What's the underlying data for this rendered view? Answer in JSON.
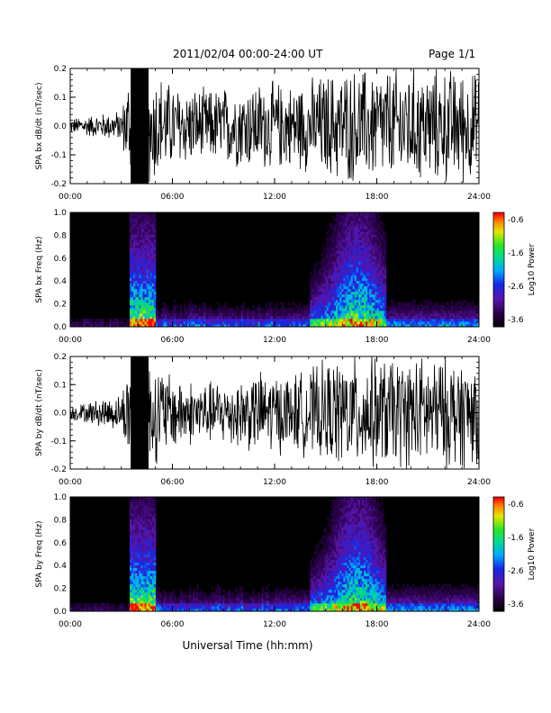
{
  "header": {
    "title": "2011/02/04  00:00-24:00 UT",
    "page": "Page 1/1"
  },
  "footer": {
    "xlabel": "Universal Time (hh:mm)"
  },
  "colorbar": {
    "label": "Log10 Power",
    "ticks": [
      "-0.6",
      "-1.6",
      "-2.6",
      "-3.6"
    ]
  },
  "chart_data": [
    {
      "type": "line",
      "panel": "bx_timeseries",
      "ylabel": "SPA bx dB/dt (nT/sec)",
      "ylim": [
        -0.2,
        0.2
      ],
      "yticks": [
        "0.2",
        "0.1",
        "0.0",
        "-0.1",
        "-0.2"
      ],
      "xlim": [
        "00:00",
        "24:00"
      ],
      "xticks": [
        "00:00",
        "06:00",
        "12:00",
        "18:00",
        "24:00"
      ],
      "x_hours": [
        0,
        1,
        2,
        3,
        3.5,
        4,
        4.5,
        5,
        6,
        7,
        8,
        9,
        10,
        11,
        12,
        13,
        14,
        15,
        16,
        17,
        18,
        19,
        20,
        21,
        22,
        23,
        24
      ],
      "amplitude": [
        0.03,
        0.04,
        0.05,
        0.06,
        0.22,
        0.22,
        0.22,
        0.22,
        0.16,
        0.15,
        0.14,
        0.15,
        0.16,
        0.17,
        0.17,
        0.16,
        0.18,
        0.2,
        0.22,
        0.22,
        0.22,
        0.22,
        0.22,
        0.22,
        0.22,
        0.22,
        0.2
      ]
    },
    {
      "type": "heatmap",
      "panel": "bx_spectrogram",
      "ylabel": "SPA bx Freq (Hz)",
      "ylim": [
        0.0,
        1.0
      ],
      "yticks": [
        "1.0",
        "0.8",
        "0.6",
        "0.4",
        "0.2",
        "0.0"
      ],
      "xlim": [
        "00:00",
        "24:00"
      ],
      "xticks": [
        "00:00",
        "06:00",
        "12:00",
        "18:00",
        "24:00"
      ],
      "zlim": [
        -3.6,
        -0.6
      ],
      "zlabel": "Log10 Power"
    },
    {
      "type": "line",
      "panel": "by_timeseries",
      "ylabel": "SPA by dB/dt (nT/sec)",
      "ylim": [
        -0.2,
        0.2
      ],
      "yticks": [
        "0.2",
        "0.1",
        "0.0",
        "-0.1",
        "-0.2"
      ],
      "xlim": [
        "00:00",
        "24:00"
      ],
      "xticks": [
        "00:00",
        "06:00",
        "12:00",
        "18:00",
        "24:00"
      ],
      "x_hours": [
        0,
        1,
        2,
        3,
        3.5,
        4,
        4.5,
        5,
        6,
        7,
        8,
        9,
        10,
        11,
        12,
        13,
        14,
        15,
        16,
        17,
        18,
        19,
        20,
        21,
        22,
        23,
        24
      ],
      "amplitude": [
        0.03,
        0.04,
        0.06,
        0.07,
        0.22,
        0.22,
        0.22,
        0.2,
        0.15,
        0.13,
        0.12,
        0.13,
        0.14,
        0.16,
        0.16,
        0.15,
        0.17,
        0.2,
        0.22,
        0.22,
        0.22,
        0.22,
        0.22,
        0.22,
        0.22,
        0.22,
        0.2
      ]
    },
    {
      "type": "heatmap",
      "panel": "by_spectrogram",
      "ylabel": "SPA by Freq (Hz)",
      "ylim": [
        0.0,
        1.0
      ],
      "yticks": [
        "1.0",
        "0.8",
        "0.6",
        "0.4",
        "0.2",
        "0.0"
      ],
      "xlim": [
        "00:00",
        "24:00"
      ],
      "xticks": [
        "00:00",
        "06:00",
        "12:00",
        "18:00",
        "24:00"
      ],
      "zlim": [
        -3.6,
        -0.6
      ],
      "zlabel": "Log10 Power"
    }
  ]
}
